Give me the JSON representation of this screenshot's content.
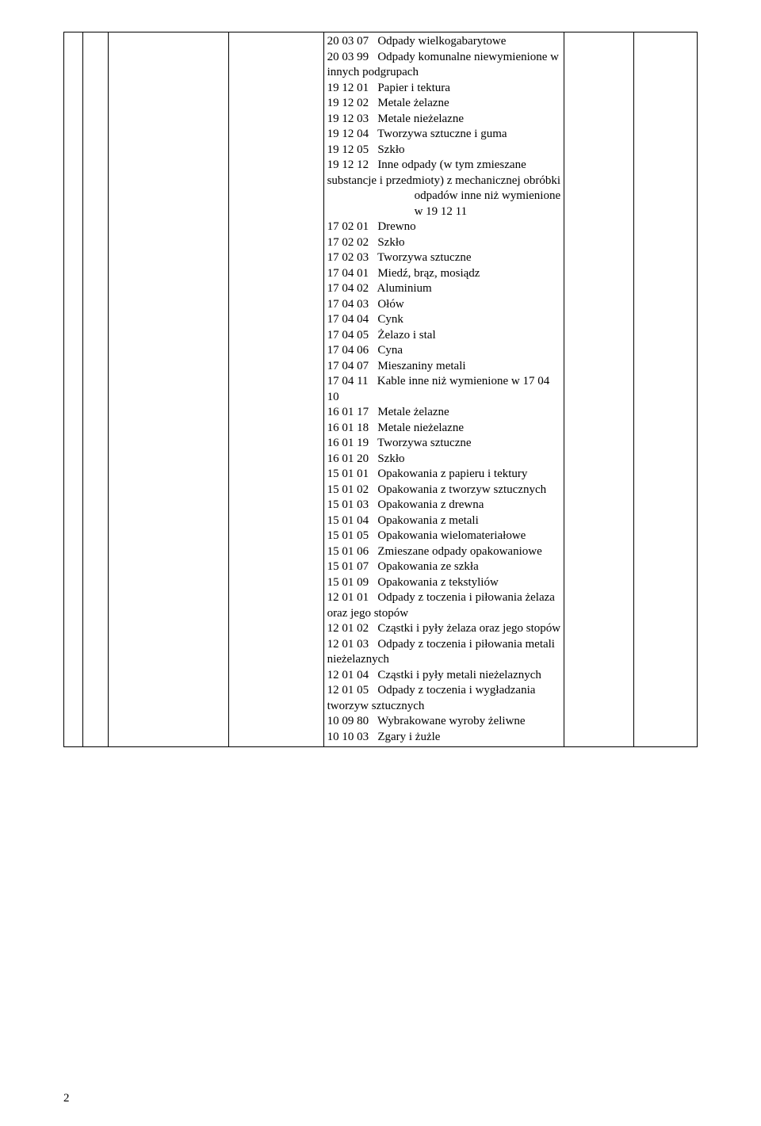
{
  "page_number": "2",
  "entries": [
    {
      "code": "20 03 07",
      "label": "Odpady wielkogabarytowe",
      "wrap": true
    },
    {
      "code": "20 03 99",
      "label": "Odpady komunalne niewymienione w innych podgrupach",
      "wrap": true
    },
    {
      "code": "19 12 01",
      "label": "Papier i tektura"
    },
    {
      "code": "19 12 02",
      "label": "Metale żelazne"
    },
    {
      "code": "19 12 03",
      "label": "Metale nieżelazne"
    },
    {
      "code": "19 12 04",
      "label": "Tworzywa sztuczne i guma",
      "wrap": true
    },
    {
      "code": "19 12 05",
      "label": "Szkło"
    },
    {
      "code": "19 12 12",
      "label": "Inne odpady (w tym zmieszane substancje i przedmioty) z mechanicznej obróbki",
      "wrap": true,
      "trailing_indent": "odpadów inne niż wymienione w 19 12 11"
    },
    {
      "code": "17 02 01",
      "label": "Drewno"
    },
    {
      "code": "17 02 02",
      "label": "Szkło"
    },
    {
      "code": "17 02 03",
      "label": "Tworzywa sztuczne"
    },
    {
      "code": "17 04 01",
      "label": "Miedź, brąz, mosiądz"
    },
    {
      "code": "17 04 02",
      "label": "Aluminium"
    },
    {
      "code": "17 04 03",
      "label": "Ołów"
    },
    {
      "code": "17 04 04",
      "label": "Cynk"
    },
    {
      "code": "17 04 05",
      "label": "Żelazo i stal"
    },
    {
      "code": "17 04 06",
      "label": "Cyna"
    },
    {
      "code": "17 04 07",
      "label": "Mieszaniny metali"
    },
    {
      "code": "17 04 11",
      "label": "Kable inne niż wymienione w 17 04 10",
      "wrap": true
    },
    {
      "code": "16 01 17",
      "label": "Metale żelazne"
    },
    {
      "code": "16 01 18",
      "label": "Metale nieżelazne"
    },
    {
      "code": "16 01 19",
      "label": "Tworzywa sztuczne"
    },
    {
      "code": "16 01 20",
      "label": "Szkło"
    },
    {
      "code": "15 01 01",
      "label": "Opakowania z papieru i tektury",
      "wrap": true
    },
    {
      "code": "15 01 02",
      "label": "Opakowania z tworzyw sztucznych",
      "wrap": true
    },
    {
      "code": "15 01 03",
      "label": "Opakowania z drewna",
      "wrap": true
    },
    {
      "code": "15 01 04",
      "label": "Opakowania z metali"
    },
    {
      "code": "15 01 05",
      "label": "Opakowania wielomateriałowe",
      "wrap": true
    },
    {
      "code": "15 01 06",
      "label": "Zmieszane odpady opakowaniowe",
      "wrap": true
    },
    {
      "code": "15 01 07",
      "label": "Opakowania ze szkła"
    },
    {
      "code": "15 01 09",
      "label": "Opakowania z tekstyliów",
      "wrap": true
    },
    {
      "code": "12 01 01",
      "label": "Odpady z toczenia i piłowania żelaza oraz jego stopów",
      "wrap": true
    },
    {
      "code": "12 01 02",
      "label": "Cząstki i pyły żelaza oraz jego stopów",
      "wrap": true
    },
    {
      "code": "12 01 03",
      "label": "Odpady z toczenia i piłowania metali nieżelaznych",
      "wrap": true
    },
    {
      "code": "12 01 04",
      "label": "Cząstki i pyły metali nieżelaznych",
      "wrap": true
    },
    {
      "code": "12 01 05",
      "label": "Odpady z toczenia i wygładzania tworzyw sztucznych",
      "wrap": true
    },
    {
      "code": "10 09 80",
      "label": "Wybrakowane wyroby żeliwne",
      "wrap": true
    },
    {
      "code": "10 10 03",
      "label": "Zgary i żużle"
    }
  ]
}
